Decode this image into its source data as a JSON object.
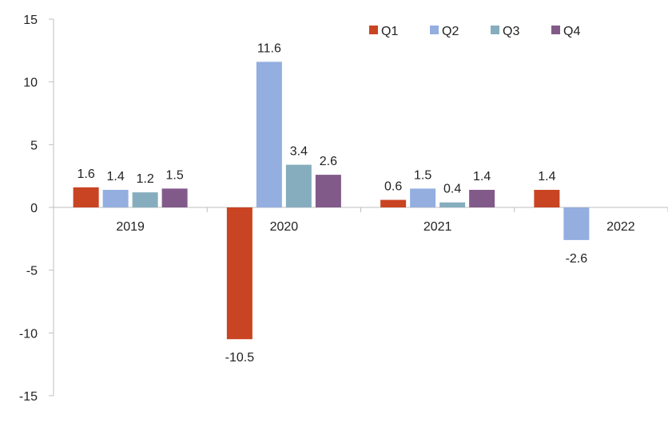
{
  "chart_data": {
    "type": "bar",
    "title": "",
    "xlabel": "",
    "ylabel": "",
    "categories": [
      "2019",
      "2020",
      "2021",
      "2022"
    ],
    "ylim": [
      -15,
      15
    ],
    "yticks": [
      15,
      10,
      5,
      0,
      -5,
      -10,
      -15
    ],
    "grid": false,
    "legend_position": "top-right",
    "series": [
      {
        "name": "Q1",
        "color": "#C94422",
        "values": [
          1.6,
          -10.5,
          0.6,
          1.4
        ],
        "labels": [
          "1.6",
          "-10.5",
          "0.6",
          "1.4"
        ]
      },
      {
        "name": "Q2",
        "color": "#93AEDF",
        "values": [
          1.4,
          11.6,
          1.5,
          -2.6
        ],
        "labels": [
          "1.4",
          "11.6",
          "1.5",
          "-2.6"
        ]
      },
      {
        "name": "Q3",
        "color": "#86ADBE",
        "values": [
          1.2,
          3.4,
          0.4,
          null
        ],
        "labels": [
          "1.2",
          "3.4",
          "0.4",
          ""
        ]
      },
      {
        "name": "Q4",
        "color": "#825A8A",
        "values": [
          1.5,
          2.6,
          1.4,
          null
        ],
        "labels": [
          "1.5",
          "2.6",
          "1.4",
          ""
        ]
      }
    ]
  }
}
